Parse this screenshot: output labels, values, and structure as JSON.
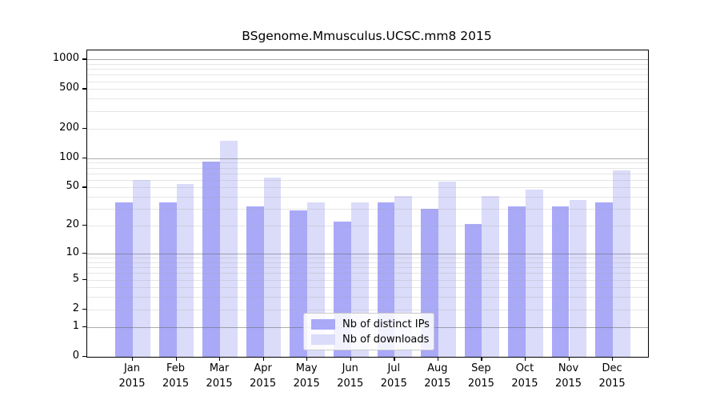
{
  "title": "BSgenome.Mmusculus.UCSC.mm8 2015",
  "colors": {
    "distinct_ips_bar": "#a9a9f8",
    "downloads_bar": "#dbdbfa",
    "axis": "#000000",
    "grid_minor": "#e4e4e4",
    "grid_major": "#b0b0b0",
    "background": "#ffffff"
  },
  "legend": {
    "items": [
      {
        "label": "Nb of distinct IPs",
        "color": "#a9a9f8"
      },
      {
        "label": "Nb of downloads",
        "color": "#dbdbfa"
      }
    ]
  },
  "chart_data": {
    "type": "bar",
    "title": "BSgenome.Mmusculus.UCSC.mm8 2015",
    "xlabel": "",
    "ylabel": "",
    "year_label": "2015",
    "categories": [
      "Jan",
      "Feb",
      "Mar",
      "Apr",
      "May",
      "Jun",
      "Jul",
      "Aug",
      "Sep",
      "Oct",
      "Nov",
      "Dec"
    ],
    "series": [
      {
        "name": "Nb of distinct IPs",
        "color": "#a9a9f8",
        "values": [
          35,
          35,
          92,
          32,
          29,
          22,
          35,
          30,
          21,
          32,
          32,
          35
        ]
      },
      {
        "name": "Nb of downloads",
        "color": "#dbdbfa",
        "values": [
          60,
          54,
          150,
          63,
          35,
          35,
          41,
          58,
          41,
          48,
          37,
          75
        ]
      }
    ],
    "y_scale": "log10(1+x)",
    "y_tick_values": [
      0,
      1,
      2,
      5,
      10,
      20,
      50,
      100,
      200,
      500,
      1000
    ],
    "y_tick_labels": [
      "0",
      "1",
      "2",
      "5",
      "10",
      "20",
      "50",
      "100",
      "200",
      "500",
      "1000"
    ],
    "y_minor_grid_values": [
      2,
      3,
      4,
      5,
      6,
      7,
      8,
      9,
      20,
      30,
      40,
      50,
      60,
      70,
      80,
      90,
      200,
      300,
      400,
      500,
      600,
      700,
      800,
      900
    ],
    "y_major_grid_values": [
      1,
      10,
      100,
      1000
    ],
    "ylim": [
      0,
      1200
    ],
    "grid": "on",
    "legend_position": "lower-center"
  }
}
